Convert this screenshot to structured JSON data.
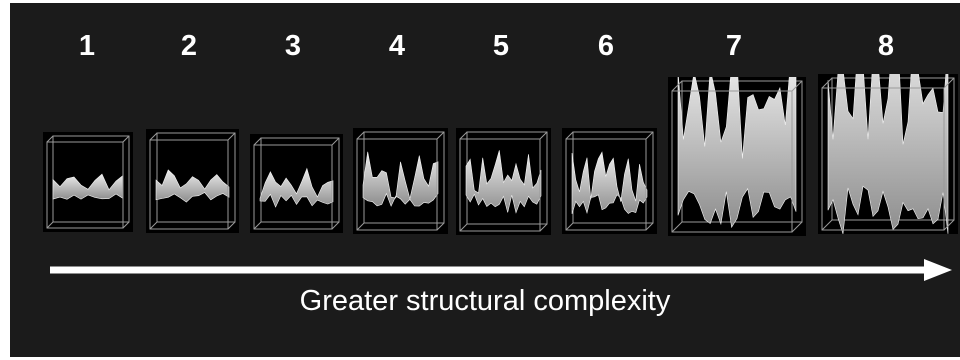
{
  "stages": [
    {
      "label": "1",
      "complexity": 1
    },
    {
      "label": "2",
      "complexity": 2
    },
    {
      "label": "3",
      "complexity": 3
    },
    {
      "label": "4",
      "complexity": 4
    },
    {
      "label": "5",
      "complexity": 5
    },
    {
      "label": "6",
      "complexity": 6
    },
    {
      "label": "7",
      "complexity": 7
    },
    {
      "label": "8",
      "complexity": 8
    }
  ],
  "caption": "Greater structural complexity",
  "colors": {
    "panel": "#1b1b1b",
    "tile": "#000000",
    "box_lines": "#9a9a9a",
    "surface_light": "#eeeeee",
    "surface_dark": "#8d8d8d",
    "text": "#ffffff",
    "arrow": "#ffffff"
  }
}
